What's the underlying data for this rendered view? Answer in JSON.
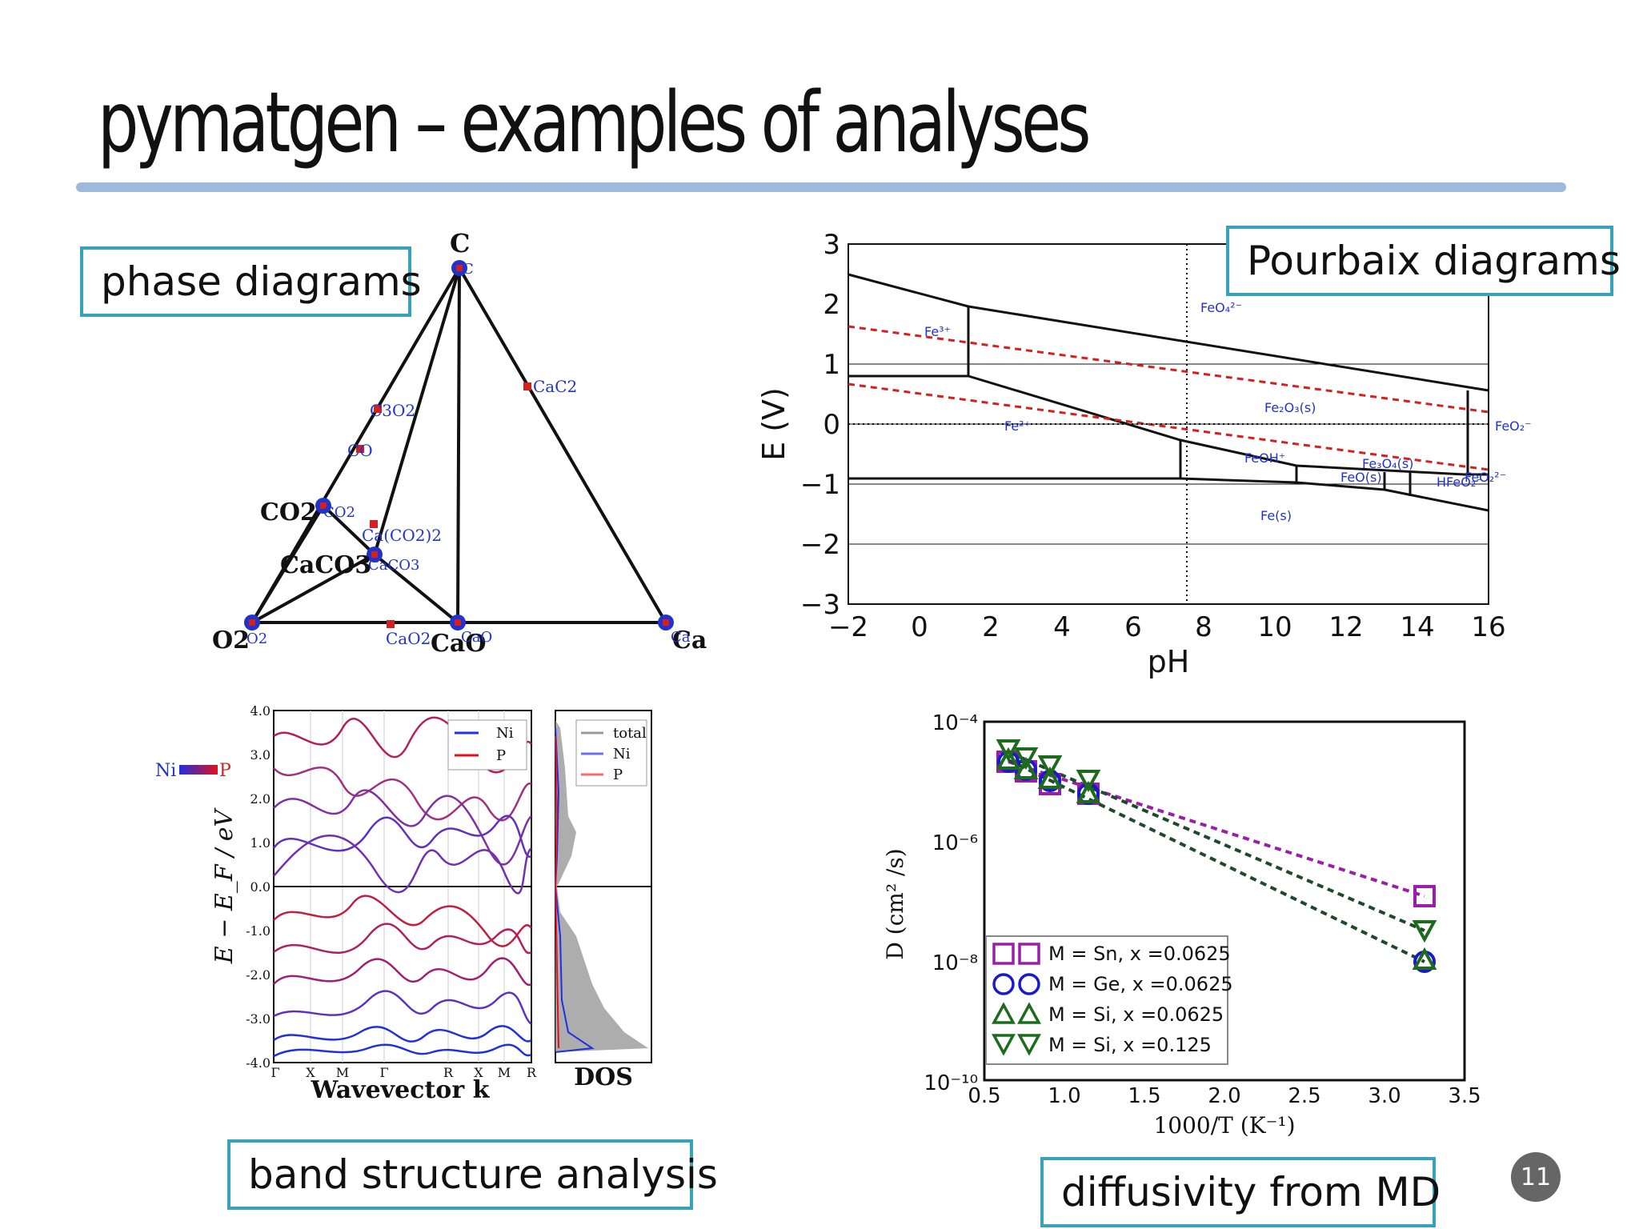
{
  "slide": {
    "title": "pymatgen – examples of analyses",
    "page_number": "11"
  },
  "labels": {
    "phase": "phase diagrams",
    "pourbaix": "Pourbaix diagrams",
    "band": "band structure analysis",
    "diffusivity": "diffusivity from MD"
  },
  "phase_diagram": {
    "corners": {
      "top": "C",
      "left": "O2",
      "right": "Ca",
      "mid": "CaO"
    },
    "labels": {
      "C": "C",
      "C_small": "C",
      "CaC2": "CaC2",
      "C3O2": "C3O2",
      "CO": "CO",
      "CO2": "CO2",
      "CO2_small": "CO2",
      "CaCO32": "Ca(CO2)2",
      "CaCO3": "CaCO3",
      "CaCO3_small": "CaCO3",
      "O2": "O2",
      "O2_small": "O2",
      "CaO2": "CaO2",
      "CaO": "CaO",
      "CaO_small": "CaO",
      "Ca": "Ca",
      "Ca_small": "Ca"
    }
  },
  "pourbaix": {
    "xlabel": "pH",
    "ylabel": "E (V)",
    "xticks": [
      "−2",
      "0",
      "2",
      "4",
      "6",
      "8",
      "10",
      "12",
      "14",
      "16"
    ],
    "yticks": [
      "3",
      "2",
      "1",
      "0",
      "−1",
      "−2",
      "−3"
    ],
    "regions": {
      "fe3": "Fe³⁺",
      "feo4": "FeO₄²⁻",
      "fe2": "Fe²⁺",
      "fe2o3": "Fe₂O₃(s)",
      "feo2": "FeO₂⁻",
      "feoh": "FeOH⁺",
      "fe3o4": "Fe₃O₄(s)",
      "feos": "FeO(s)",
      "hfeo2": "HFeO₂⁻",
      "feo2_2": "FeO₂²⁻",
      "fes": "Fe(s)"
    }
  },
  "band_structure": {
    "ylabel": "E − E_F / eV",
    "xlabel": "Wavevector k",
    "dos_label": "DOS",
    "yticks": [
      "4.0",
      "3.0",
      "2.0",
      "1.0",
      "0.0",
      "-1.0",
      "-2.0",
      "-3.0",
      "-4.0"
    ],
    "kpoints": [
      "Γ",
      "X",
      "M",
      "Γ",
      "R",
      "X",
      "M",
      "R"
    ],
    "colorbar": {
      "left": "Ni",
      "right": "P"
    },
    "legend_band": [
      "Ni",
      "P"
    ],
    "legend_dos": [
      "total",
      "Ni",
      "P"
    ]
  },
  "diffusivity": {
    "xlabel": "1000/T (K⁻¹)",
    "ylabel": "D (cm² /s)",
    "xticks": [
      "0.5",
      "1.0",
      "1.5",
      "2.0",
      "2.5",
      "3.0",
      "3.5"
    ],
    "yticks": [
      "10⁻⁴",
      "10⁻⁶",
      "10⁻⁸",
      "10⁻¹⁰"
    ],
    "legend": [
      "M = Sn, x =0.0625",
      "M = Ge, x =0.0625",
      "M = Si, x =0.0625",
      "M = Si, x =0.125"
    ]
  },
  "colors": {
    "accent_rule": "#9fb9dc",
    "label_border": "#38a3b8",
    "marker_red": "#d21f1f",
    "marker_blue": "#2233cc",
    "pourbaix_dashed": "#d42020",
    "sn": "#9a1fa8",
    "ge": "#1a1acc",
    "si": "#1d6b1d"
  }
}
